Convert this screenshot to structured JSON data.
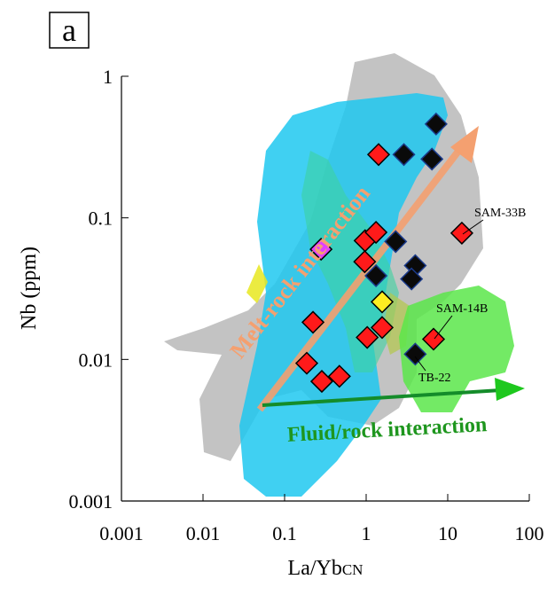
{
  "chart_data": {
    "type": "scatter",
    "panel_label": "a",
    "xlabel": "La/Yb",
    "xlabel_sub": "CN",
    "ylabel": "Nb (ppm)",
    "xscale": "log",
    "yscale": "log",
    "xlim": [
      0.001,
      100
    ],
    "ylim": [
      0.001,
      1
    ],
    "xticks": [
      0.001,
      0.01,
      0.1,
      1,
      10,
      100
    ],
    "yticks": [
      0.001,
      0.01,
      0.1,
      1
    ],
    "series": [
      {
        "color": "#ff1a1a",
        "x": [
          1.42,
          14.9,
          0.97,
          1.32,
          0.96,
          0.223,
          1.03,
          1.57,
          6.7,
          0.187,
          0.286,
          0.47
        ],
        "y": [
          0.28,
          0.078,
          0.069,
          0.079,
          0.049,
          0.0183,
          0.0143,
          0.0168,
          0.0139,
          0.0094,
          0.007,
          0.0076
        ]
      },
      {
        "color": "#0a0a0a",
        "x": [
          7.2,
          2.9,
          6.4,
          2.3,
          1.32,
          4.0,
          3.6,
          4.0
        ],
        "y": [
          0.46,
          0.28,
          0.26,
          0.068,
          0.039,
          0.046,
          0.037,
          0.0109
        ]
      },
      {
        "color": "#e040ff",
        "x": [
          0.28
        ],
        "y": [
          0.06
        ]
      },
      {
        "color": "#ffee22",
        "x": [
          1.57
        ],
        "y": [
          0.0255
        ]
      }
    ],
    "annotations": [
      "SAM-33B",
      "SAM-14B",
      "TB-22",
      "Melt-rock interaction",
      "Fluid/rock interaction"
    ]
  }
}
